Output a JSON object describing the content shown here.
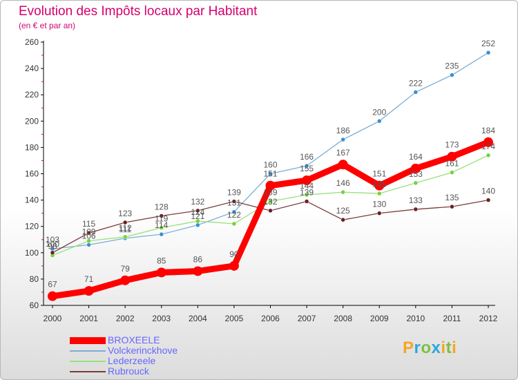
{
  "chart_data": {
    "type": "line",
    "title": "Evolution des Impôts locaux par Habitant",
    "subtitle": "(en € et par an)",
    "xlabel": "",
    "ylabel": "",
    "ylim": [
      60,
      260
    ],
    "yticks": [
      "60",
      "80",
      "100",
      "120",
      "140",
      "160",
      "180",
      "200",
      "220",
      "240",
      "260"
    ],
    "categories": [
      "2000",
      "2001",
      "2002",
      "2003",
      "2004",
      "2005",
      "2006",
      "2007",
      "2008",
      "2009",
      "2010",
      "2011",
      "2012"
    ],
    "series": [
      {
        "name": "BROXEELE",
        "color": "#ff0000",
        "highlight": true,
        "values": [
          67,
          71,
          79,
          85,
          86,
          90,
          151,
          155,
          167,
          151,
          164,
          173,
          184
        ],
        "labels": [
          "67",
          "71",
          "79",
          "85",
          "86",
          "90",
          "151",
          "155",
          "167",
          "151",
          "164",
          "173",
          "184"
        ]
      },
      {
        "name": "Volckerinckhove",
        "color": "#7aaed6",
        "marker": "#3d8fd1",
        "values": [
          103,
          106,
          111,
          114,
          121,
          131,
          160,
          166,
          186,
          200,
          222,
          235,
          252
        ],
        "labels": [
          "103",
          "106",
          "111",
          "114",
          "121",
          "131",
          "160",
          "166",
          "186",
          "200",
          "222",
          "235",
          "252"
        ]
      },
      {
        "name": "Lederzeele",
        "color": "#99e07a",
        "marker": "#72d43c",
        "values": [
          98,
          109,
          112,
          119,
          124,
          122,
          139,
          144,
          146,
          145,
          153,
          161,
          174
        ],
        "labels": [
          "98",
          "109",
          "112",
          "119",
          "124",
          "122",
          "139",
          "144",
          "146",
          "145",
          "153",
          "161",
          "174"
        ]
      },
      {
        "name": "Rubrouck",
        "color": "#7a3a3a",
        "marker": "#6b2020",
        "values": [
          100,
          115,
          123,
          128,
          132,
          139,
          132,
          139,
          125,
          130,
          133,
          135,
          140
        ],
        "labels": [
          "100",
          "115",
          "123",
          "128",
          "132",
          "139",
          "132",
          "139",
          "125",
          "130",
          "133",
          "135",
          "140"
        ]
      }
    ],
    "legend_position": "bottom-left",
    "grid": false
  },
  "logo": {
    "letters": [
      "P",
      "r",
      "o",
      "x",
      "i",
      "t",
      "i"
    ],
    "colors": [
      "#f5a623",
      "#29a9e0",
      "#7ac142",
      "#29a9e0",
      "#f5a623",
      "#7ac142",
      "#f5a623"
    ]
  }
}
